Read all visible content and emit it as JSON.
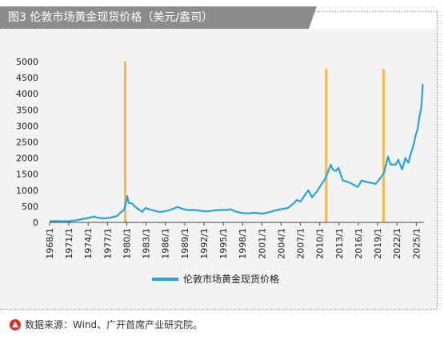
{
  "figure": {
    "title": "图3   伦敦市场黄金现货价格（美元/盎司）",
    "source": "数据来源：Wind、广开首席产业研究院。",
    "source_icon": "up-arrow-circle-icon"
  },
  "colors": {
    "line": "#29a3dc",
    "marker": "#f5b94a",
    "title_bg": "#8c8c8c",
    "panel_bg": "#f3f3f3",
    "source_icon": "#d8312b"
  },
  "chart_data": {
    "type": "line",
    "title": "",
    "xlabel": "",
    "ylabel": "",
    "ylim": [
      0,
      5000
    ],
    "xlim": [
      1968.0,
      2026.2
    ],
    "yticks": [
      "0",
      "500",
      "1000",
      "1500",
      "2000",
      "2500",
      "3000",
      "3500",
      "4000",
      "4500",
      "5000"
    ],
    "xticks": [
      "1968/1",
      "1971/1",
      "1974/1",
      "1977/1",
      "1980/1",
      "1983/1",
      "1986/1",
      "1989/1",
      "1992/1",
      "1995/1",
      "1998/1",
      "2001/1",
      "2004/1",
      "2007/1",
      "2010/1",
      "2013/1",
      "2016/1",
      "2019/1",
      "2022/1",
      "2025/1"
    ],
    "grid": false,
    "legend": "bottom-center",
    "series": [
      {
        "name": "伦敦市场黄金现货价格",
        "x": [
          1968.0,
          1969.0,
          1970.0,
          1971.0,
          1972.0,
          1973.0,
          1973.5,
          1974.0,
          1974.9,
          1975.5,
          1976.6,
          1977.5,
          1978.5,
          1979.0,
          1979.6,
          1979.9,
          1980.05,
          1980.3,
          1980.8,
          1981.5,
          1982.4,
          1982.9,
          1983.3,
          1984.5,
          1985.2,
          1986.5,
          1987.9,
          1988.5,
          1989.5,
          1990.5,
          1991.5,
          1992.5,
          1993.5,
          1994.5,
          1995.5,
          1996.1,
          1997.0,
          1998.0,
          1999.0,
          1999.8,
          2001.0,
          2002.0,
          2003.0,
          2004.0,
          2005.0,
          2006.0,
          2006.4,
          2007.0,
          2008.2,
          2008.8,
          2009.5,
          2010.0,
          2010.9,
          2011.7,
          2012.0,
          2012.5,
          2012.9,
          2013.3,
          2013.6,
          2014.5,
          2015.0,
          2015.9,
          2016.5,
          2017.5,
          2018.7,
          2019.5,
          2020.0,
          2020.6,
          2021.0,
          2021.8,
          2022.2,
          2022.8,
          2023.3,
          2023.8,
          2024.0,
          2024.5,
          2024.9,
          2025.2,
          2025.5,
          2025.8,
          2026.0
        ],
        "values": [
          38,
          43,
          36,
          41,
          60,
          100,
          120,
          140,
          180,
          145,
          125,
          150,
          200,
          300,
          400,
          650,
          820,
          600,
          590,
          450,
          330,
          450,
          420,
          350,
          320,
          370,
          480,
          430,
          380,
          385,
          360,
          340,
          370,
          385,
          385,
          410,
          330,
          290,
          280,
          300,
          270,
          310,
          365,
          410,
          445,
          600,
          700,
          650,
          1000,
          780,
          950,
          1100,
          1380,
          1800,
          1650,
          1600,
          1700,
          1450,
          1300,
          1250,
          1200,
          1100,
          1300,
          1250,
          1200,
          1400,
          1550,
          2050,
          1800,
          1800,
          1950,
          1650,
          2000,
          1850,
          2050,
          2350,
          2700,
          2900,
          3300,
          3600,
          4300
        ]
      }
    ],
    "markers": [
      1979.75,
      2011.0,
      2019.9
    ]
  }
}
